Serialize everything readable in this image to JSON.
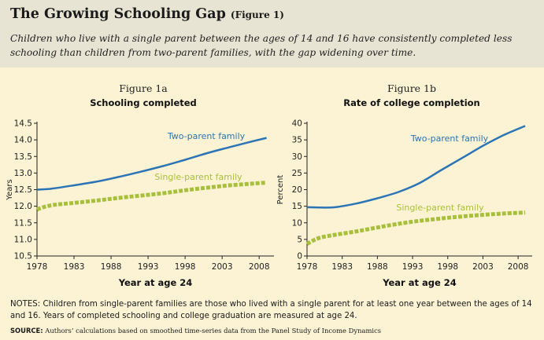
{
  "header": {
    "title": "The Growing Schooling Gap",
    "title_note": "(Figure 1)",
    "subtitle": "Children who live with a single parent between the ages of 14 and 16 have consistently completed less schooling than children from two-parent families, with the gap widening over time."
  },
  "colors": {
    "two_parent": "#2b74b5",
    "single_parent": "#a8bf3c",
    "background": "#fbf3d4",
    "header": "#e7e4d3"
  },
  "chart_data": [
    {
      "type": "line",
      "figure_label": "Figure 1a",
      "title": "Schooling completed",
      "xlabel": "Year at age 24",
      "ylabel": "Years",
      "xlim": [
        1978,
        2010
      ],
      "ylim": [
        10.5,
        14.5
      ],
      "xticks": [
        1978,
        1983,
        1988,
        1993,
        1998,
        2003,
        2008
      ],
      "yticks": [
        "10.5",
        "11.0",
        "11.5",
        "12.0",
        "12.5",
        "13.0",
        "13.5",
        "14.0",
        "14.5"
      ],
      "series": [
        {
          "name": "Two-parent family",
          "style": "solid",
          "x": [
            1978,
            1980,
            1983,
            1986,
            1989,
            1992,
            1995,
            1998,
            2001,
            2004,
            2007,
            2009
          ],
          "y": [
            12.5,
            12.53,
            12.63,
            12.74,
            12.88,
            13.04,
            13.21,
            13.4,
            13.6,
            13.78,
            13.95,
            14.06
          ]
        },
        {
          "name": "Single-parent family",
          "style": "dashed",
          "x": [
            1978,
            1979,
            1980,
            1981,
            1983,
            1986,
            1989,
            1992,
            1995,
            1998,
            2001,
            2004,
            2007,
            2009
          ],
          "y": [
            11.9,
            11.98,
            12.03,
            12.06,
            12.1,
            12.17,
            12.25,
            12.32,
            12.39,
            12.48,
            12.56,
            12.63,
            12.68,
            12.71
          ]
        }
      ]
    },
    {
      "type": "line",
      "figure_label": "Figure 1b",
      "title": "Rate of college completion",
      "xlabel": "Year at age 24",
      "ylabel": "Percent",
      "xlim": [
        1978,
        2010
      ],
      "ylim": [
        0,
        40
      ],
      "xticks": [
        1978,
        1983,
        1988,
        1993,
        1998,
        2003,
        2008
      ],
      "yticks": [
        "0",
        "5",
        "10",
        "15",
        "20",
        "25",
        "30",
        "35",
        "40"
      ],
      "series": [
        {
          "name": "Two-parent family",
          "style": "solid",
          "x": [
            1978,
            1980,
            1982,
            1985,
            1988,
            1991,
            1994,
            1997,
            2000,
            2003,
            2006,
            2009
          ],
          "y": [
            14.7,
            14.6,
            14.7,
            15.8,
            17.4,
            19.3,
            22.0,
            25.8,
            29.5,
            33.2,
            36.5,
            39.2
          ]
        },
        {
          "name": "Single-parent family",
          "style": "dashed",
          "x": [
            1978,
            1979,
            1980,
            1982,
            1985,
            1988,
            1991,
            1994,
            1997,
            2000,
            2003,
            2006,
            2009
          ],
          "y": [
            3.6,
            4.8,
            5.6,
            6.4,
            7.4,
            8.6,
            9.7,
            10.6,
            11.3,
            11.9,
            12.4,
            12.8,
            13.1
          ]
        }
      ]
    }
  ],
  "notes": {
    "lead": "NOTES:",
    "text": "Children from single-parent families are those who lived with a single parent for at least one year between the ages of 14 and 16. Years of completed schooling and college graduation are measured at age 24."
  },
  "source": {
    "lead": "SOURCE:",
    "text": "Authors’ calculations based on smoothed time-series data from the Panel Study of Income Dynamics"
  }
}
